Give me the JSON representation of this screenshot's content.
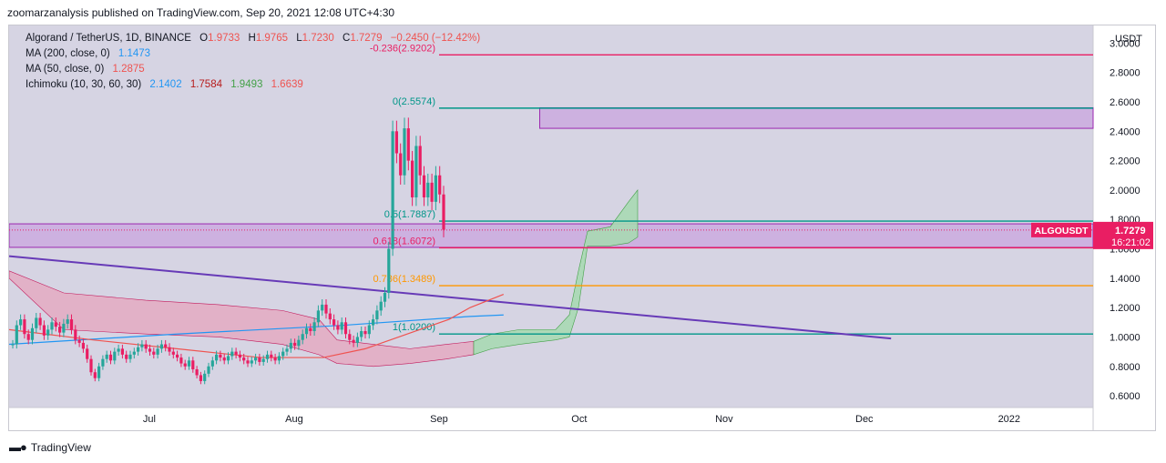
{
  "header": {
    "text": "zoomarzanalysis published on TradingView.com, Sep 20, 2021 12:08 UTC+4:30"
  },
  "legend": {
    "symbol": "Algorand / TetherUS, 1D, BINANCE",
    "o_label": "O",
    "o": "1.9733",
    "h_label": "H",
    "h": "1.9765",
    "l_label": "L",
    "l": "1.7230",
    "c_label": "C",
    "c": "1.7279",
    "change": "−0.2450 (−12.42%)",
    "ma200_label": "MA (200, close, 0)",
    "ma200": "1.1473",
    "ma50_label": "MA (50, close, 0)",
    "ma50": "1.2875",
    "ichimoku_label": "Ichimoku (10, 30, 60, 30)",
    "ichi_1": "2.1402",
    "ichi_2": "1.7584",
    "ichi_3": "1.9493",
    "ichi_4": "1.6639"
  },
  "footer": {
    "brand": "TradingView"
  },
  "colors": {
    "plot_bg": "#d6d4e3",
    "up": "#26a69a",
    "down": "#ef5350",
    "fib_red": "#e91e63",
    "fib_teal": "#009688",
    "fib_orange": "#ff9800",
    "trend": "#673ab7",
    "ma50": "#ef5350",
    "ma200": "#2196f3",
    "zone_fill": "#c9a6df",
    "zone_line": "#9c27b0",
    "cloud_red": "#e4aac2",
    "cloud_green": "#a8d9b2"
  },
  "chart_data": {
    "type": "candlestick",
    "title": "Algorand / TetherUS, 1D, BINANCE",
    "currency": "USDT",
    "ylim": [
      0.52,
      3.12
    ],
    "y_ticks": [
      "3.0000",
      "2.8000",
      "2.6000",
      "2.4000",
      "2.2000",
      "2.0000",
      "1.8000",
      "1.6000",
      "1.4000",
      "1.2000",
      "1.0000",
      "0.8000",
      "0.6000"
    ],
    "x_tick_labels": [
      {
        "label": "Jul",
        "date": "2021-07-01"
      },
      {
        "label": "Aug",
        "date": "2021-08-01"
      },
      {
        "label": "Sep",
        "date": "2021-09-01"
      },
      {
        "label": "Oct",
        "date": "2021-10-01"
      },
      {
        "label": "Nov",
        "date": "2021-11-01"
      },
      {
        "label": "Dec",
        "date": "2021-12-01"
      },
      {
        "label": "2022",
        "date": "2022-01-01"
      }
    ],
    "first_candle_date": "2021-06-01",
    "closes": [
      0.95,
      1.08,
      1.12,
      1.02,
      0.98,
      1.06,
      1.13,
      1.08,
      1.01,
      1.05,
      1.1,
      1.07,
      1.03,
      1.09,
      1.12,
      1.05,
      0.98,
      0.96,
      0.92,
      0.85,
      0.76,
      0.72,
      0.8,
      0.85,
      0.88,
      0.84,
      0.9,
      0.92,
      0.88,
      0.85,
      0.88,
      0.9,
      0.93,
      0.95,
      0.92,
      0.9,
      0.88,
      0.92,
      0.95,
      0.93,
      0.9,
      0.88,
      0.86,
      0.82,
      0.8,
      0.84,
      0.78,
      0.74,
      0.7,
      0.75,
      0.8,
      0.84,
      0.88,
      0.86,
      0.84,
      0.87,
      0.9,
      0.88,
      0.86,
      0.84,
      0.82,
      0.84,
      0.86,
      0.83,
      0.85,
      0.88,
      0.86,
      0.84,
      0.87,
      0.9,
      0.92,
      0.96,
      0.94,
      0.98,
      1.02,
      1.06,
      1.04,
      1.1,
      1.18,
      1.22,
      1.16,
      1.12,
      1.08,
      1.05,
      1.1,
      1.02,
      0.98,
      0.96,
      1.0,
      1.04,
      1.02,
      1.08,
      1.12,
      1.18,
      1.24,
      1.3,
      1.6,
      2.4,
      2.25,
      2.1,
      2.42,
      2.2,
      1.95,
      2.3,
      2.1,
      1.95,
      2.05,
      1.92,
      2.1,
      1.97,
      1.73
    ],
    "price_label": {
      "symbol": "ALGOUSDT",
      "price": "1.7279",
      "countdown": "16:21:02"
    },
    "ma200_points": [
      [
        0,
        0.95
      ],
      [
        40,
        1.02
      ],
      [
        80,
        1.08
      ],
      [
        110,
        1.14
      ],
      [
        118,
        1.15
      ]
    ],
    "ma50_points": [
      [
        0,
        1.05
      ],
      [
        20,
        0.98
      ],
      [
        40,
        0.92
      ],
      [
        60,
        0.86
      ],
      [
        75,
        0.86
      ],
      [
        85,
        0.92
      ],
      [
        95,
        1.02
      ],
      [
        105,
        1.12
      ],
      [
        110,
        1.2
      ],
      [
        118,
        1.29
      ]
    ],
    "fib_levels": [
      {
        "label": "-0.236(2.9202)",
        "value": 2.9202,
        "color": "#e91e63",
        "label_align": "right"
      },
      {
        "label": "0(2.5574)",
        "value": 2.5574,
        "color": "#009688",
        "label_align": "right"
      },
      {
        "label": "0.5(1.7887)",
        "value": 1.7887,
        "color": "#009688",
        "label_align": "right"
      },
      {
        "label": "0.618(1.6072)",
        "value": 1.6072,
        "color": "#e91e63",
        "label_align": "right"
      },
      {
        "label": "0.786(1.3489)",
        "value": 1.3489,
        "color": "#ff9800",
        "label_align": "right"
      },
      {
        "label": "1(1.0200)",
        "value": 1.02,
        "color": "#009688",
        "label_align": "right"
      }
    ],
    "zones": [
      {
        "top": 2.56,
        "bottom": 2.42,
        "x0": 0.25,
        "x1": 1.0
      },
      {
        "top": 1.77,
        "bottom": 1.61,
        "x0": 0.0,
        "x1": 1.0
      }
    ],
    "trendline": {
      "from": [
        0,
        1.55
      ],
      "to": [
        0.78,
        0.99
      ]
    }
  }
}
